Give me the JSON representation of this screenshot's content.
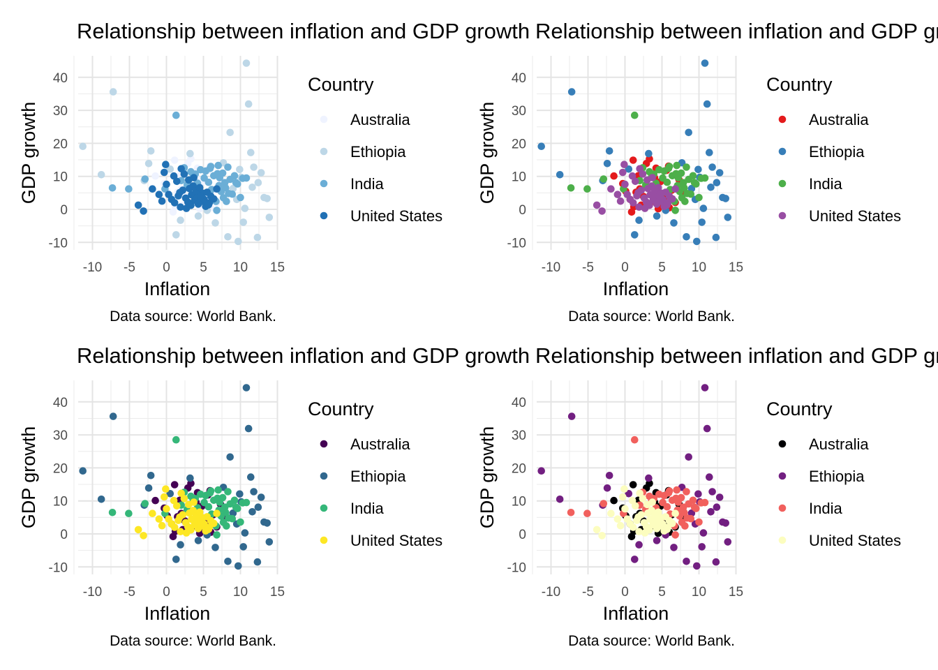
{
  "chart_data": [
    {
      "type": "scatter",
      "title": "Relationship between inflation and GDP growth",
      "xlabel": "Inflation",
      "ylabel": "GDP growth",
      "caption": "Data source: World Bank.",
      "legend_title": "Country",
      "legend_position": "right",
      "xlim": [
        -12,
        15
      ],
      "ylim": [
        -11,
        46
      ],
      "xticks": [
        -10,
        -5,
        0,
        5,
        10,
        15
      ],
      "yticks": [
        -10,
        0,
        10,
        20,
        30,
        40
      ],
      "grid": true,
      "palette": "Blues",
      "colors": {
        "Australia": "#eff3ff",
        "Ethiopia": "#bdd7e7",
        "India": "#6baed6",
        "United States": "#2171b5"
      }
    },
    {
      "type": "scatter",
      "title": "Relationship between inflation and GDP growth",
      "xlabel": "Inflation",
      "ylabel": "GDP growth",
      "caption": "Data source: World Bank.",
      "legend_title": "Country",
      "legend_position": "right",
      "xlim": [
        -12,
        15
      ],
      "ylim": [
        -11,
        46
      ],
      "xticks": [
        -10,
        -5,
        0,
        5,
        10,
        15
      ],
      "yticks": [
        -10,
        0,
        10,
        20,
        30,
        40
      ],
      "grid": true,
      "palette": "Set1",
      "colors": {
        "Australia": "#e41a1c",
        "Ethiopia": "#377eb8",
        "India": "#4daf4a",
        "United States": "#984ea3"
      }
    },
    {
      "type": "scatter",
      "title": "Relationship between inflation and GDP growth",
      "xlabel": "Inflation",
      "ylabel": "GDP growth",
      "caption": "Data source: World Bank.",
      "legend_title": "Country",
      "legend_position": "right",
      "xlim": [
        -12,
        15
      ],
      "ylim": [
        -11,
        46
      ],
      "xticks": [
        -10,
        -5,
        0,
        5,
        10,
        15
      ],
      "yticks": [
        -10,
        0,
        10,
        20,
        30,
        40
      ],
      "grid": true,
      "palette": "viridis",
      "colors": {
        "Australia": "#440154",
        "Ethiopia": "#31688e",
        "India": "#35b779",
        "United States": "#fde725"
      }
    },
    {
      "type": "scatter",
      "title": "Relationship between inflation and GDP growth",
      "xlabel": "Inflation",
      "ylabel": "GDP growth",
      "caption": "Data source: World Bank.",
      "legend_title": "Country",
      "legend_position": "right",
      "xlim": [
        -12,
        15
      ],
      "ylim": [
        -11,
        46
      ],
      "xticks": [
        -10,
        -5,
        0,
        5,
        10,
        15
      ],
      "yticks": [
        -10,
        0,
        10,
        20,
        30,
        40
      ],
      "grid": true,
      "palette": "magma",
      "colors": {
        "Australia": "#000004",
        "Ethiopia": "#721f81",
        "India": "#f1605d",
        "United States": "#fcfdbf"
      }
    }
  ],
  "series": [
    {
      "name": "Australia",
      "points": [
        [
          1.2,
          0.8
        ],
        [
          1.5,
          5.2
        ],
        [
          1.8,
          10.2
        ],
        [
          2.2,
          1.3
        ],
        [
          2.5,
          3.9
        ],
        [
          2.9,
          13.9
        ],
        [
          3.1,
          1.4
        ],
        [
          3.4,
          6.8
        ],
        [
          3.8,
          2.5
        ],
        [
          4.2,
          12.5
        ],
        [
          4.5,
          0.2
        ],
        [
          4.8,
          8.4
        ],
        [
          5.2,
          3.2
        ],
        [
          5.6,
          11.8
        ],
        [
          6.0,
          0.5
        ],
        [
          6.3,
          5.8
        ],
        [
          6.8,
          2.1
        ],
        [
          7.3,
          9.0
        ],
        [
          -1.5,
          10.1
        ],
        [
          -0.3,
          7.8
        ],
        [
          0.1,
          5.5
        ],
        [
          0.7,
          3.0
        ],
        [
          0.9,
          -0.8
        ],
        [
          1.1,
          14.9
        ],
        [
          2.0,
          6.2
        ],
        [
          3.3,
          15.3
        ],
        [
          4.0,
          9.6
        ],
        [
          4.9,
          1.8
        ],
        [
          5.9,
          13.1
        ],
        [
          7.8,
          4.6
        ]
      ]
    },
    {
      "name": "Ethiopia",
      "points": [
        [
          -11.3,
          19.1
        ],
        [
          -8.8,
          10.5
        ],
        [
          -7.2,
          35.6
        ],
        [
          -2.1,
          17.7
        ],
        [
          1.3,
          -7.7
        ],
        [
          3.2,
          16.9
        ],
        [
          5.5,
          -0.3
        ],
        [
          8.3,
          -8.3
        ],
        [
          8.6,
          23.3
        ],
        [
          9.5,
          3.0
        ],
        [
          9.7,
          -9.7
        ],
        [
          10.1,
          9.7
        ],
        [
          10.6,
          0.3
        ],
        [
          10.8,
          44.3
        ],
        [
          11.1,
          31.9
        ],
        [
          11.4,
          17.2
        ],
        [
          11.8,
          12.8
        ],
        [
          12.3,
          -8.5
        ],
        [
          12.4,
          8.1
        ],
        [
          13.2,
          3.6
        ],
        [
          13.6,
          3.3
        ],
        [
          13.9,
          -2.4
        ],
        [
          -3.0,
          8.7
        ],
        [
          -2.4,
          13.9
        ],
        [
          0.5,
          12.2
        ],
        [
          1.9,
          -3.3
        ],
        [
          4.3,
          -2.0
        ],
        [
          6.6,
          -4.1
        ],
        [
          7.7,
          14.1
        ],
        [
          9.0,
          6.3
        ],
        [
          9.9,
          12.1
        ],
        [
          10.4,
          -3.9
        ],
        [
          11.6,
          6.7
        ],
        [
          12.8,
          11.1
        ]
      ]
    },
    {
      "name": "India",
      "points": [
        [
          -7.3,
          6.5
        ],
        [
          -5.1,
          6.2
        ],
        [
          -2.9,
          9.2
        ],
        [
          -0.2,
          6.2
        ],
        [
          1.3,
          28.5
        ],
        [
          2.0,
          8.7
        ],
        [
          2.8,
          7.4
        ],
        [
          3.3,
          11.4
        ],
        [
          3.6,
          9.8
        ],
        [
          4.2,
          7.9
        ],
        [
          4.9,
          4.8
        ],
        [
          5.3,
          11.6
        ],
        [
          5.7,
          8.2
        ],
        [
          5.9,
          12.4
        ],
        [
          6.1,
          6.0
        ],
        [
          6.4,
          10.2
        ],
        [
          6.7,
          2.4
        ],
        [
          6.8,
          -0.3
        ],
        [
          7.0,
          13.3
        ],
        [
          7.2,
          9.6
        ],
        [
          7.4,
          5.4
        ],
        [
          7.6,
          11.0
        ],
        [
          7.9,
          8.1
        ],
        [
          8.1,
          2.4
        ],
        [
          8.3,
          12.8
        ],
        [
          8.6,
          9.1
        ],
        [
          8.9,
          4.6
        ],
        [
          9.2,
          10.2
        ],
        [
          9.6,
          7.7
        ],
        [
          10.0,
          3.6
        ],
        [
          10.3,
          9.4
        ],
        [
          4.6,
          12.0
        ],
        [
          5.1,
          9.5
        ],
        [
          6.0,
          13.0
        ],
        [
          7.1,
          7.2
        ],
        [
          7.7,
          3.5
        ],
        [
          8.0,
          6.5
        ],
        [
          8.4,
          4.8
        ],
        [
          9.4,
          8.1
        ],
        [
          3.9,
          10.7
        ],
        [
          4.4,
          2.2
        ],
        [
          6.9,
          10.8
        ],
        [
          10.8,
          9.5
        ],
        [
          2.4,
          12.6
        ]
      ]
    },
    {
      "name": "United States",
      "points": [
        [
          -3.8,
          1.3
        ],
        [
          -3.1,
          -0.5
        ],
        [
          -1.9,
          6.2
        ],
        [
          -0.6,
          2.5
        ],
        [
          -0.3,
          11.2
        ],
        [
          -0.1,
          13.6
        ],
        [
          0.3,
          4.5
        ],
        [
          0.7,
          3.0
        ],
        [
          1.1,
          2.0
        ],
        [
          1.4,
          8.5
        ],
        [
          1.6,
          4.1
        ],
        [
          1.9,
          0.7
        ],
        [
          2.2,
          5.8
        ],
        [
          2.4,
          10.7
        ],
        [
          2.6,
          3.4
        ],
        [
          2.9,
          2.2
        ],
        [
          3.1,
          6.3
        ],
        [
          3.3,
          1.2
        ],
        [
          3.4,
          4.4
        ],
        [
          3.6,
          7.1
        ],
        [
          3.8,
          2.8
        ],
        [
          4.0,
          5.5
        ],
        [
          4.2,
          3.6
        ],
        [
          4.3,
          1.6
        ],
        [
          4.5,
          6.6
        ],
        [
          4.7,
          2.4
        ],
        [
          4.9,
          4.9
        ],
        [
          5.1,
          3.0
        ],
        [
          5.3,
          0.9
        ],
        [
          5.5,
          5.2
        ],
        [
          5.8,
          2.0
        ],
        [
          6.0,
          4.0
        ],
        [
          6.4,
          3.2
        ],
        [
          6.8,
          6.2
        ],
        [
          1.0,
          10.1
        ],
        [
          2.0,
          12.3
        ],
        [
          3.0,
          8.9
        ],
        [
          4.6,
          4.0
        ],
        [
          5.7,
          1.4
        ],
        [
          0.0,
          7.6
        ],
        [
          -1.0,
          4.5
        ],
        [
          1.8,
          5.1
        ],
        [
          3.7,
          9.6
        ],
        [
          2.7,
          0.3
        ]
      ]
    }
  ]
}
